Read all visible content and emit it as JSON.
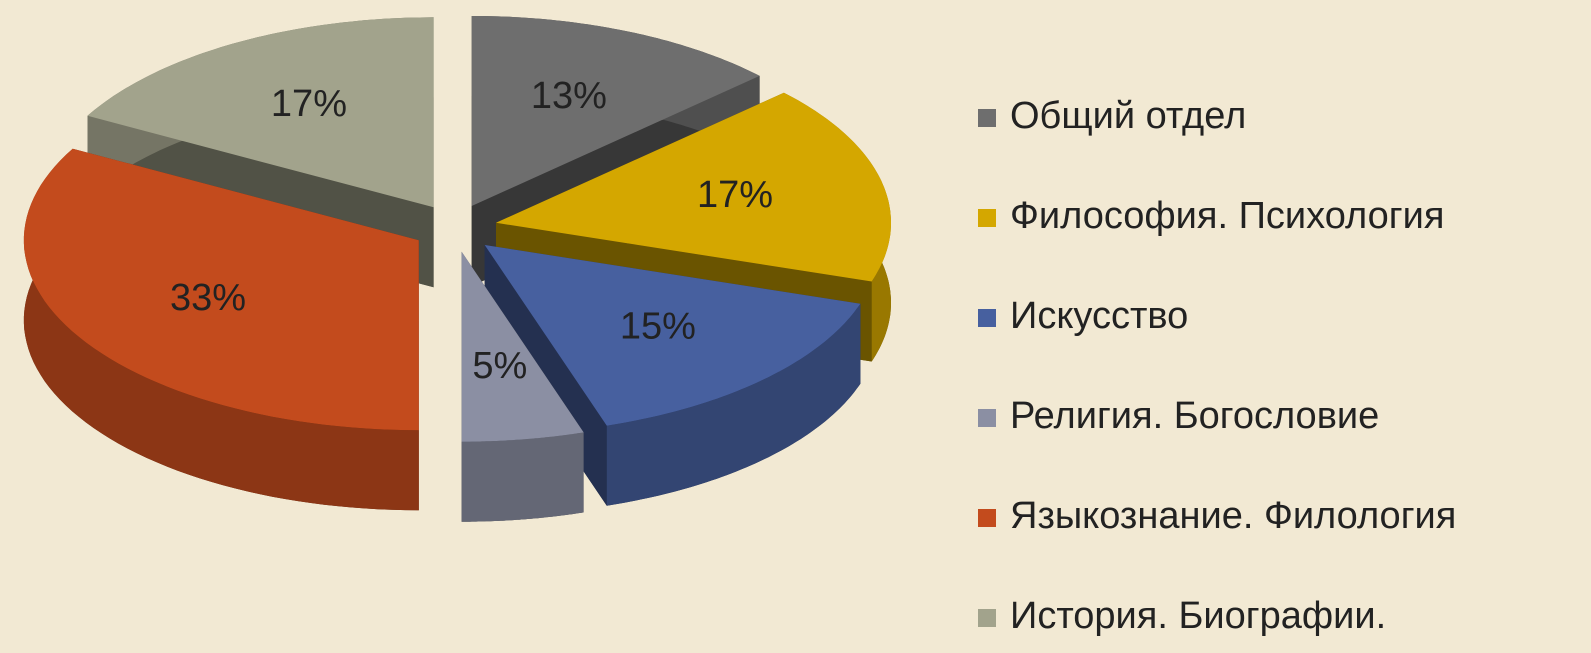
{
  "chart_data": {
    "type": "pie",
    "categories": [
      "Общий отдел",
      "Философия. Психология",
      "Искусство",
      "Религия. Богословие",
      "Языкознание. Филология",
      "История. Биографии."
    ],
    "values": [
      13,
      17,
      15,
      5,
      33,
      17
    ],
    "value_labels": [
      "13%",
      "17%",
      "15%",
      "5%",
      "33%",
      "17%"
    ],
    "colors": [
      "#6e6e6e",
      "#d4a700",
      "#47609f",
      "#8b8fa3",
      "#c34b1d",
      "#a2a38c"
    ],
    "legend": "right"
  }
}
